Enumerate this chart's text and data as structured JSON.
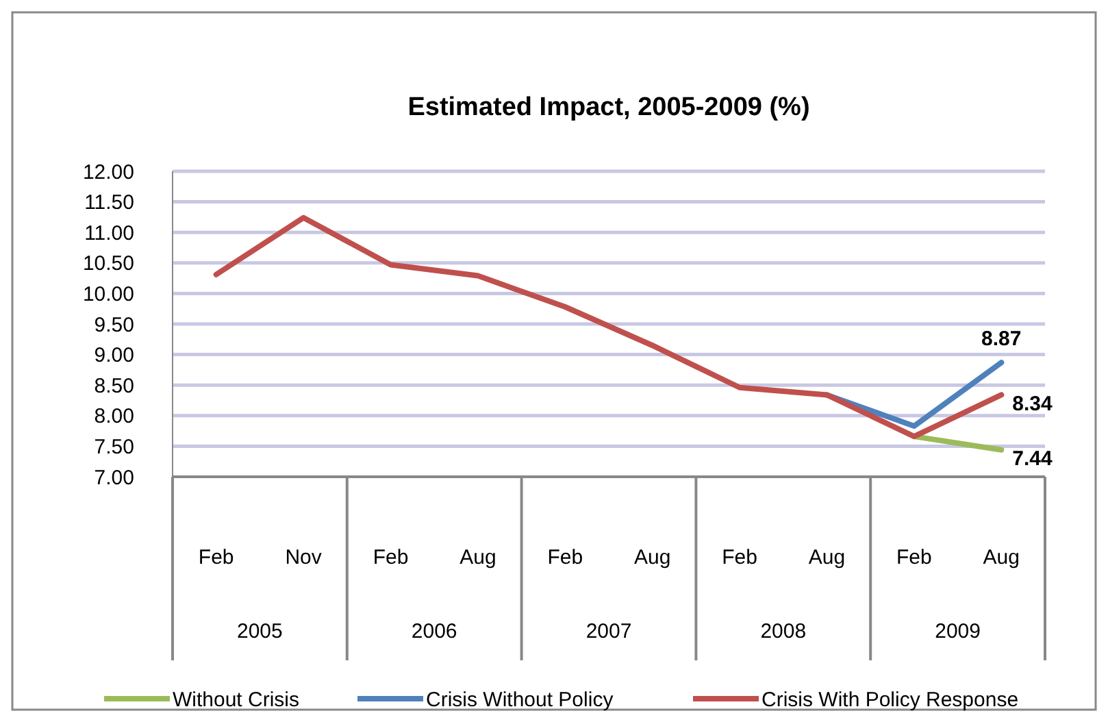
{
  "chart_data": {
    "type": "line",
    "title": "Estimated Impact, 2005-2009 (%)",
    "categories": [
      "Feb",
      "Nov",
      "Feb",
      "Aug",
      "Feb",
      "Aug",
      "Feb",
      "Aug",
      "Feb",
      "Aug"
    ],
    "annotations": [
      "2005",
      "2006",
      "2007",
      "2008",
      "2009"
    ],
    "series": [
      {
        "name": "Without Crisis",
        "color": "#9bbb59",
        "values": [
          null,
          null,
          null,
          null,
          null,
          null,
          null,
          null,
          7.66,
          7.44
        ],
        "value_labels": [
          null,
          null,
          null,
          null,
          null,
          null,
          null,
          null,
          null,
          "7.44"
        ]
      },
      {
        "name": "Crisis Without Policy",
        "color": "#4f81bd",
        "values": [
          null,
          null,
          null,
          null,
          null,
          null,
          null,
          8.34,
          7.83,
          8.87
        ],
        "value_labels": [
          null,
          null,
          null,
          null,
          null,
          null,
          null,
          null,
          null,
          "8.87"
        ]
      },
      {
        "name": "Crisis With Policy Response",
        "color": "#c0504d",
        "values": [
          10.31,
          11.24,
          10.47,
          10.29,
          9.78,
          9.15,
          8.46,
          8.34,
          7.66,
          8.34
        ],
        "value_labels": [
          null,
          null,
          null,
          null,
          null,
          null,
          null,
          null,
          null,
          "8.34"
        ]
      }
    ],
    "ylim": [
      7,
      12
    ],
    "yticks": [
      {
        "value": 7,
        "label": "7.00"
      },
      {
        "value": 7.5,
        "label": "7.50"
      },
      {
        "value": 8,
        "label": "8.00"
      },
      {
        "value": 8.5,
        "label": "8.50"
      },
      {
        "value": 9,
        "label": "9.00"
      },
      {
        "value": 9.5,
        "label": "9.50"
      },
      {
        "value": 10,
        "label": "10.00"
      },
      {
        "value": 10.5,
        "label": "10.50"
      },
      {
        "value": 11,
        "label": "11.00"
      },
      {
        "value": 11.5,
        "label": "11.50"
      },
      {
        "value": 12,
        "label": "12.00"
      }
    ],
    "grid": "y",
    "legend": "bottom",
    "marker": "none",
    "line_style": "solid"
  }
}
